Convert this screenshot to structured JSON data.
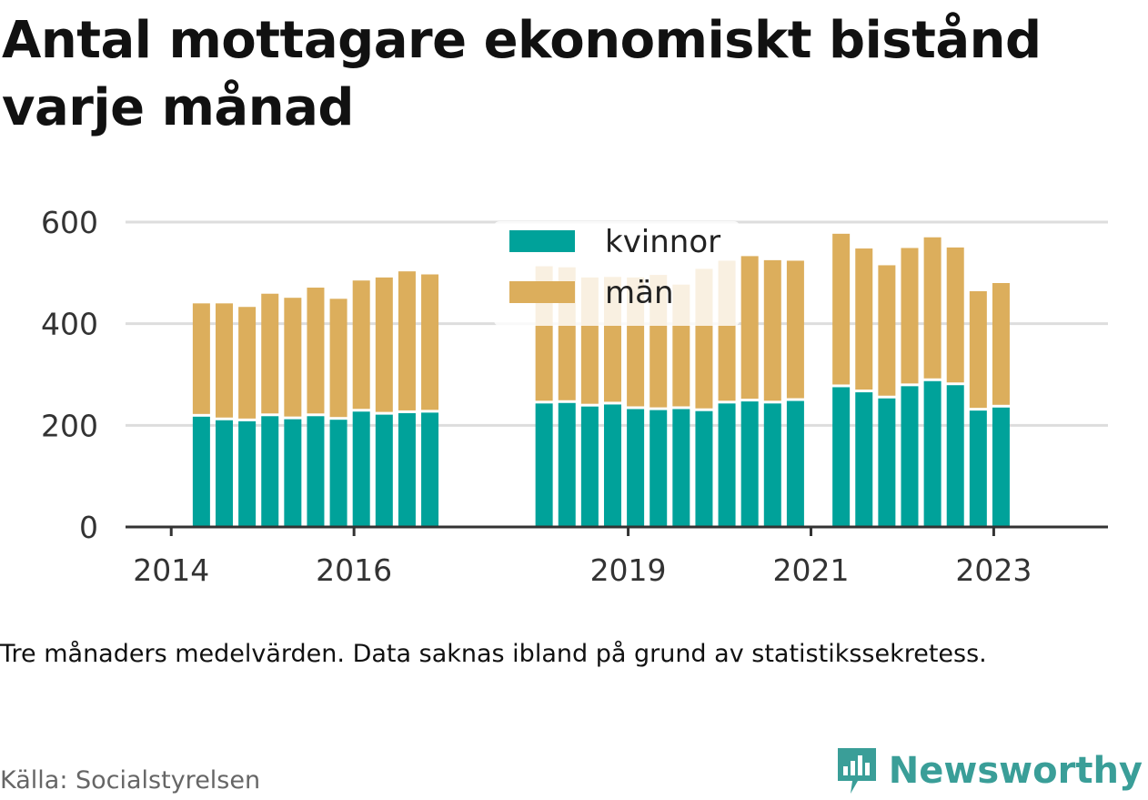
{
  "title": "Antal mottagare ekonomiskt bistånd varje månad",
  "note": "Tre månaders medelvärden. Data saknas ibland på grund av statistikssekretess.",
  "source": "Källa: Socialstyrelsen",
  "brand": {
    "name": "Newsworthy",
    "icon": "newsworthy-logo-icon",
    "color": "#3a9e98"
  },
  "colors": {
    "kvinnor": "#00a29a",
    "man": "#dcae5c",
    "grid": "#dddddd",
    "axis": "#333333"
  },
  "chart_data": {
    "type": "bar",
    "stacked": true,
    "title": "Antal mottagare ekonomiskt bistånd varje månad",
    "xlabel": "",
    "ylabel": "",
    "ylim": [
      0,
      600
    ],
    "yticks": [
      0,
      200,
      400,
      600
    ],
    "xticks": [
      {
        "label": "2014",
        "year": 2014.0
      },
      {
        "label": "2016",
        "year": 2016.0
      },
      {
        "label": "2019",
        "year": 2019.0
      },
      {
        "label": "2021",
        "year": 2021.0
      },
      {
        "label": "2023",
        "year": 2023.0
      }
    ],
    "xlim": [
      2013.5,
      2024.25
    ],
    "grid": true,
    "legend_position": "top-center",
    "series": [
      {
        "name": "kvinnor",
        "color": "#00a29a",
        "values": [
          217,
          210,
          208,
          218,
          212,
          218,
          211,
          227,
          221,
          224,
          225,
          243,
          244,
          237,
          241,
          232,
          230,
          232,
          228,
          243,
          247,
          243,
          248,
          275,
          265,
          253,
          277,
          287,
          279,
          229,
          235
        ]
      },
      {
        "name": "män",
        "color": "#dcae5c",
        "values": [
          223,
          230,
          225,
          241,
          239,
          253,
          238,
          258,
          270,
          279,
          272,
          270,
          267,
          254,
          251,
          259,
          266,
          245,
          280,
          281,
          286,
          282,
          276,
          302,
          283,
          262,
          272,
          283,
          271,
          235,
          245
        ]
      }
    ],
    "x": [
      2014.33,
      2014.58,
      2014.83,
      2015.08,
      2015.33,
      2015.58,
      2015.83,
      2016.08,
      2016.33,
      2016.58,
      2016.83,
      2018.08,
      2018.33,
      2018.58,
      2018.83,
      2019.08,
      2019.33,
      2019.58,
      2019.83,
      2020.08,
      2020.33,
      2020.58,
      2020.83,
      2021.33,
      2021.58,
      2021.83,
      2022.08,
      2022.33,
      2022.58,
      2022.83,
      2023.08
    ]
  }
}
